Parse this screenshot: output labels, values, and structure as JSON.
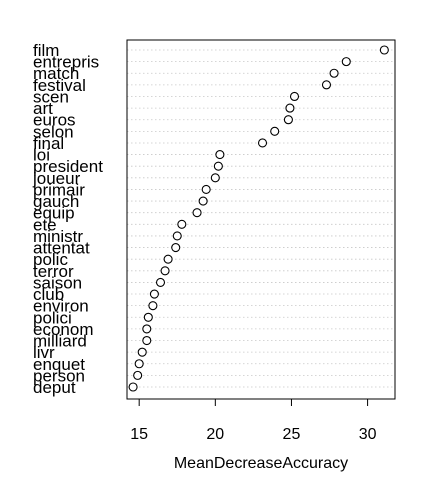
{
  "chart_data": {
    "type": "scatter",
    "xlabel": "MeanDecreaseAccuracy",
    "xlim": [
      14.2,
      31.8
    ],
    "xticks": [
      15,
      20,
      25,
      30
    ],
    "grid": true,
    "variables": [
      {
        "name": "film",
        "value": 31.1
      },
      {
        "name": "entrepris",
        "value": 28.6
      },
      {
        "name": "match",
        "value": 27.8
      },
      {
        "name": "festival",
        "value": 27.3
      },
      {
        "name": "scen",
        "value": 25.2
      },
      {
        "name": "art",
        "value": 24.9
      },
      {
        "name": "euros",
        "value": 24.8
      },
      {
        "name": "selon",
        "value": 23.9
      },
      {
        "name": "final",
        "value": 23.1
      },
      {
        "name": "loi",
        "value": 20.3
      },
      {
        "name": "president",
        "value": 20.2
      },
      {
        "name": "joueur",
        "value": 20.0
      },
      {
        "name": "primair",
        "value": 19.4
      },
      {
        "name": "gauch",
        "value": 19.2
      },
      {
        "name": "equip",
        "value": 18.8
      },
      {
        "name": "ete",
        "value": 17.8
      },
      {
        "name": "ministr",
        "value": 17.5
      },
      {
        "name": "attentat",
        "value": 17.4
      },
      {
        "name": "polic",
        "value": 16.9
      },
      {
        "name": "terror",
        "value": 16.7
      },
      {
        "name": "saison",
        "value": 16.4
      },
      {
        "name": "club",
        "value": 16.0
      },
      {
        "name": "environ",
        "value": 15.9
      },
      {
        "name": "polici",
        "value": 15.6
      },
      {
        "name": "econom",
        "value": 15.5
      },
      {
        "name": "milliard",
        "value": 15.5
      },
      {
        "name": "livr",
        "value": 15.2
      },
      {
        "name": "enquet",
        "value": 15.0
      },
      {
        "name": "person",
        "value": 14.9
      },
      {
        "name": "deput",
        "value": 14.6
      }
    ]
  }
}
